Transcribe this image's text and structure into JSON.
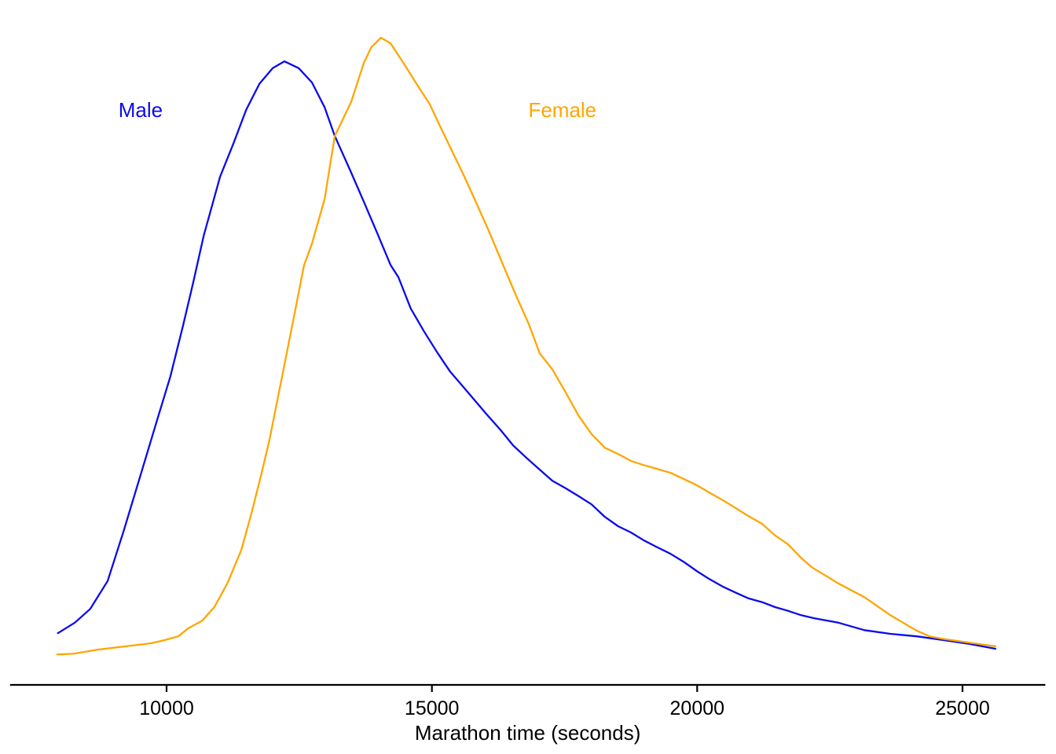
{
  "figure": {
    "background_color": "#ffffff",
    "axis_color": "#000000",
    "text_color": "#000000"
  },
  "chart_data": {
    "type": "line",
    "subtype": "kernel-density",
    "title": "",
    "xlabel": "Marathon time (seconds)",
    "ylabel": "",
    "grid": false,
    "y_axis_shown": false,
    "legend_position": "inline-labels",
    "x_ticks": [
      10000,
      15000,
      20000,
      25000
    ],
    "x_tick_labels": [
      "10000",
      "15000",
      "20000",
      "25000"
    ],
    "xlim": [
      7050,
      26560
    ],
    "ylim_relative_density": [
      -0.04,
      1.04
    ],
    "x_data_range": [
      7940,
      25620
    ],
    "peak_summary": {
      "male_peak_seconds": 12220,
      "female_peak_seconds": 14040,
      "male_peak_relative_density": 0.962,
      "female_peak_relative_density": 1.0
    },
    "series": [
      {
        "name": "Male",
        "color": "#0a0aee",
        "label_pos": {
          "x": 9510,
          "y": 0.884
        },
        "points": [
          [
            7950,
            0.043
          ],
          [
            8270,
            0.06
          ],
          [
            8560,
            0.082
          ],
          [
            8890,
            0.127
          ],
          [
            9190,
            0.207
          ],
          [
            9530,
            0.303
          ],
          [
            9820,
            0.385
          ],
          [
            10070,
            0.455
          ],
          [
            10310,
            0.537
          ],
          [
            10500,
            0.606
          ],
          [
            10700,
            0.682
          ],
          [
            11010,
            0.777
          ],
          [
            11260,
            0.83
          ],
          [
            11500,
            0.884
          ],
          [
            11750,
            0.926
          ],
          [
            12000,
            0.951
          ],
          [
            12220,
            0.962
          ],
          [
            12490,
            0.951
          ],
          [
            12740,
            0.928
          ],
          [
            12980,
            0.888
          ],
          [
            13170,
            0.842
          ],
          [
            13480,
            0.783
          ],
          [
            13720,
            0.736
          ],
          [
            13970,
            0.686
          ],
          [
            14220,
            0.635
          ],
          [
            14370,
            0.615
          ],
          [
            14600,
            0.565
          ],
          [
            14860,
            0.527
          ],
          [
            15110,
            0.493
          ],
          [
            15340,
            0.464
          ],
          [
            15600,
            0.438
          ],
          [
            15850,
            0.413
          ],
          [
            16040,
            0.394
          ],
          [
            16290,
            0.37
          ],
          [
            16530,
            0.345
          ],
          [
            16780,
            0.325
          ],
          [
            17030,
            0.306
          ],
          [
            17270,
            0.288
          ],
          [
            17520,
            0.276
          ],
          [
            17770,
            0.263
          ],
          [
            18010,
            0.25
          ],
          [
            18260,
            0.23
          ],
          [
            18510,
            0.215
          ],
          [
            18750,
            0.205
          ],
          [
            19000,
            0.192
          ],
          [
            19250,
            0.181
          ],
          [
            19490,
            0.171
          ],
          [
            19740,
            0.158
          ],
          [
            19990,
            0.143
          ],
          [
            20230,
            0.13
          ],
          [
            20480,
            0.118
          ],
          [
            20730,
            0.108
          ],
          [
            20970,
            0.099
          ],
          [
            21220,
            0.093
          ],
          [
            21470,
            0.085
          ],
          [
            21710,
            0.079
          ],
          [
            21960,
            0.072
          ],
          [
            22210,
            0.067
          ],
          [
            22660,
            0.06
          ],
          [
            23150,
            0.048
          ],
          [
            23640,
            0.042
          ],
          [
            24140,
            0.038
          ],
          [
            24630,
            0.032
          ],
          [
            25120,
            0.026
          ],
          [
            25620,
            0.018
          ]
        ]
      },
      {
        "name": "Female",
        "color": "#ffa500",
        "label_pos": {
          "x": 17460,
          "y": 0.884
        },
        "points": [
          [
            7940,
            0.009
          ],
          [
            8240,
            0.01
          ],
          [
            8740,
            0.017
          ],
          [
            9230,
            0.022
          ],
          [
            9720,
            0.027
          ],
          [
            9970,
            0.032
          ],
          [
            10220,
            0.038
          ],
          [
            10410,
            0.051
          ],
          [
            10670,
            0.063
          ],
          [
            10900,
            0.085
          ],
          [
            11150,
            0.124
          ],
          [
            11410,
            0.177
          ],
          [
            11600,
            0.236
          ],
          [
            11790,
            0.3
          ],
          [
            11940,
            0.354
          ],
          [
            12190,
            0.461
          ],
          [
            12410,
            0.556
          ],
          [
            12590,
            0.634
          ],
          [
            12740,
            0.669
          ],
          [
            12980,
            0.741
          ],
          [
            13170,
            0.842
          ],
          [
            13480,
            0.897
          ],
          [
            13720,
            0.96
          ],
          [
            13860,
            0.985
          ],
          [
            14040,
            1.0
          ],
          [
            14220,
            0.991
          ],
          [
            14460,
            0.96
          ],
          [
            14710,
            0.926
          ],
          [
            14960,
            0.893
          ],
          [
            15080,
            0.871
          ],
          [
            15340,
            0.825
          ],
          [
            15600,
            0.779
          ],
          [
            15850,
            0.732
          ],
          [
            16090,
            0.686
          ],
          [
            16340,
            0.635
          ],
          [
            16590,
            0.585
          ],
          [
            16830,
            0.539
          ],
          [
            17030,
            0.493
          ],
          [
            17270,
            0.467
          ],
          [
            17520,
            0.43
          ],
          [
            17770,
            0.392
          ],
          [
            18010,
            0.363
          ],
          [
            18260,
            0.341
          ],
          [
            18510,
            0.331
          ],
          [
            18750,
            0.32
          ],
          [
            19000,
            0.313
          ],
          [
            19250,
            0.307
          ],
          [
            19490,
            0.301
          ],
          [
            19740,
            0.291
          ],
          [
            19990,
            0.281
          ],
          [
            20230,
            0.269
          ],
          [
            20480,
            0.257
          ],
          [
            20730,
            0.244
          ],
          [
            20970,
            0.231
          ],
          [
            21220,
            0.219
          ],
          [
            21470,
            0.2
          ],
          [
            21710,
            0.186
          ],
          [
            21960,
            0.164
          ],
          [
            22160,
            0.149
          ],
          [
            22660,
            0.123
          ],
          [
            23150,
            0.101
          ],
          [
            23640,
            0.072
          ],
          [
            24140,
            0.047
          ],
          [
            24380,
            0.038
          ],
          [
            24630,
            0.034
          ],
          [
            25120,
            0.028
          ],
          [
            25620,
            0.022
          ]
        ]
      }
    ]
  }
}
